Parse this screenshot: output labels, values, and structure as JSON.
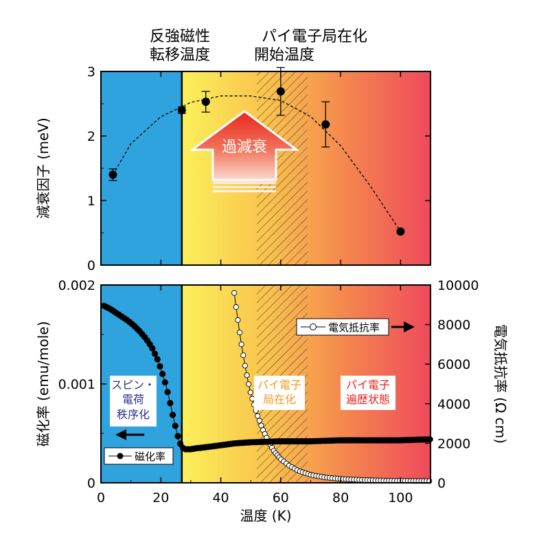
{
  "top_labels": {
    "afm_line1": "反強磁性",
    "afm_line2": "転移温度",
    "pi_line1": "パイ電子局在化",
    "pi_line2": "開始温度"
  },
  "arrow_label": "過減衰",
  "region_labels": {
    "blue_1": "スピン・",
    "blue_2": "電荷",
    "blue_3": "秩序化",
    "yellow_1": "パイ電子",
    "yellow_2": "局在化",
    "red_1": "パイ電子",
    "red_2": "遍歴状態"
  },
  "legend": {
    "resistivity": "電気抵抗率",
    "susceptibility": "磁化率"
  },
  "colors": {
    "blue": "#2fa3dd",
    "yellow": "#fbe84f",
    "orange": "#f7a24a",
    "red": "#ef4a5c",
    "blue_text": "#2a2f8f",
    "yellow_text": "#f39a1e",
    "red_text": "#e8201f"
  },
  "chart_data": [
    {
      "type": "scatter",
      "ylabel": "減衰因子 (meV)",
      "xlim": [
        0,
        110
      ],
      "ylim": [
        0,
        3
      ],
      "yticks": [
        "0",
        "1",
        "2",
        "3"
      ],
      "ytick_values": [
        0,
        1,
        2,
        3
      ],
      "series": [
        {
          "x": [
            4,
            27,
            35,
            60,
            75,
            100
          ],
          "y": [
            1.4,
            2.4,
            2.53,
            2.69,
            2.18,
            0.52
          ],
          "yerr": [
            0.09,
            0.05,
            0.16,
            0.37,
            0.35,
            0.0
          ]
        }
      ],
      "fit_curve": {
        "x": [
          4,
          10,
          20,
          30,
          40,
          50,
          60,
          70,
          80,
          90,
          100
        ],
        "y": [
          1.4,
          1.88,
          2.3,
          2.52,
          2.62,
          2.62,
          2.55,
          2.3,
          1.85,
          1.22,
          0.52
        ]
      },
      "vertical_line_x": 27,
      "hatch_range": [
        52,
        69
      ]
    },
    {
      "type": "line",
      "xlabel": "温度 (K)",
      "ylabel_left": "磁化率 (emu/mole)",
      "ylabel_right": "電気抵抗率 (Ω cm)",
      "xlim": [
        0,
        110
      ],
      "ylim_left": [
        0,
        0.002
      ],
      "ylim_right": [
        0,
        10000
      ],
      "xticks": [
        "0",
        "20",
        "40",
        "60",
        "80",
        "100"
      ],
      "xtick_values": [
        0,
        20,
        40,
        60,
        80,
        100
      ],
      "yticks_left": [
        "0",
        "0.001",
        "0.002"
      ],
      "ytick_left_values": [
        0,
        0.001,
        0.002
      ],
      "yticks_right": [
        "0",
        "2000",
        "4000",
        "6000",
        "8000",
        "10000"
      ],
      "ytick_right_values": [
        0,
        2000,
        4000,
        6000,
        8000,
        10000
      ],
      "susceptibility": {
        "x": [
          1,
          3,
          5,
          7,
          9,
          11,
          13,
          15,
          17,
          19,
          21,
          22,
          23,
          24,
          25,
          26,
          27,
          28,
          30,
          32,
          35,
          40,
          45,
          50,
          60,
          70,
          80,
          90,
          100,
          110
        ],
        "y": [
          0.00179,
          0.00176,
          0.00172,
          0.00168,
          0.00164,
          0.00159,
          0.00153,
          0.00146,
          0.00137,
          0.00124,
          0.00106,
          0.00095,
          0.00082,
          0.00068,
          0.00055,
          0.00043,
          0.00036,
          0.00034,
          0.00034,
          0.00035,
          0.00036,
          0.00038,
          0.0004,
          0.00041,
          0.00042,
          0.00042,
          0.00043,
          0.00043,
          0.00043,
          0.00044
        ]
      },
      "resistivity": {
        "x": [
          44.5,
          45,
          46,
          47,
          48,
          49,
          50,
          52,
          54,
          56,
          58,
          60,
          63,
          66,
          70,
          75,
          80,
          85,
          90,
          95,
          100,
          105,
          110
        ],
        "y": [
          9600,
          9000,
          7900,
          6900,
          6000,
          5200,
          4500,
          3500,
          2700,
          2050,
          1550,
          1200,
          850,
          600,
          400,
          270,
          200,
          160,
          130,
          110,
          100,
          95,
          90
        ]
      },
      "vertical_line_x": 27,
      "hatch_range": [
        52,
        69
      ]
    }
  ]
}
